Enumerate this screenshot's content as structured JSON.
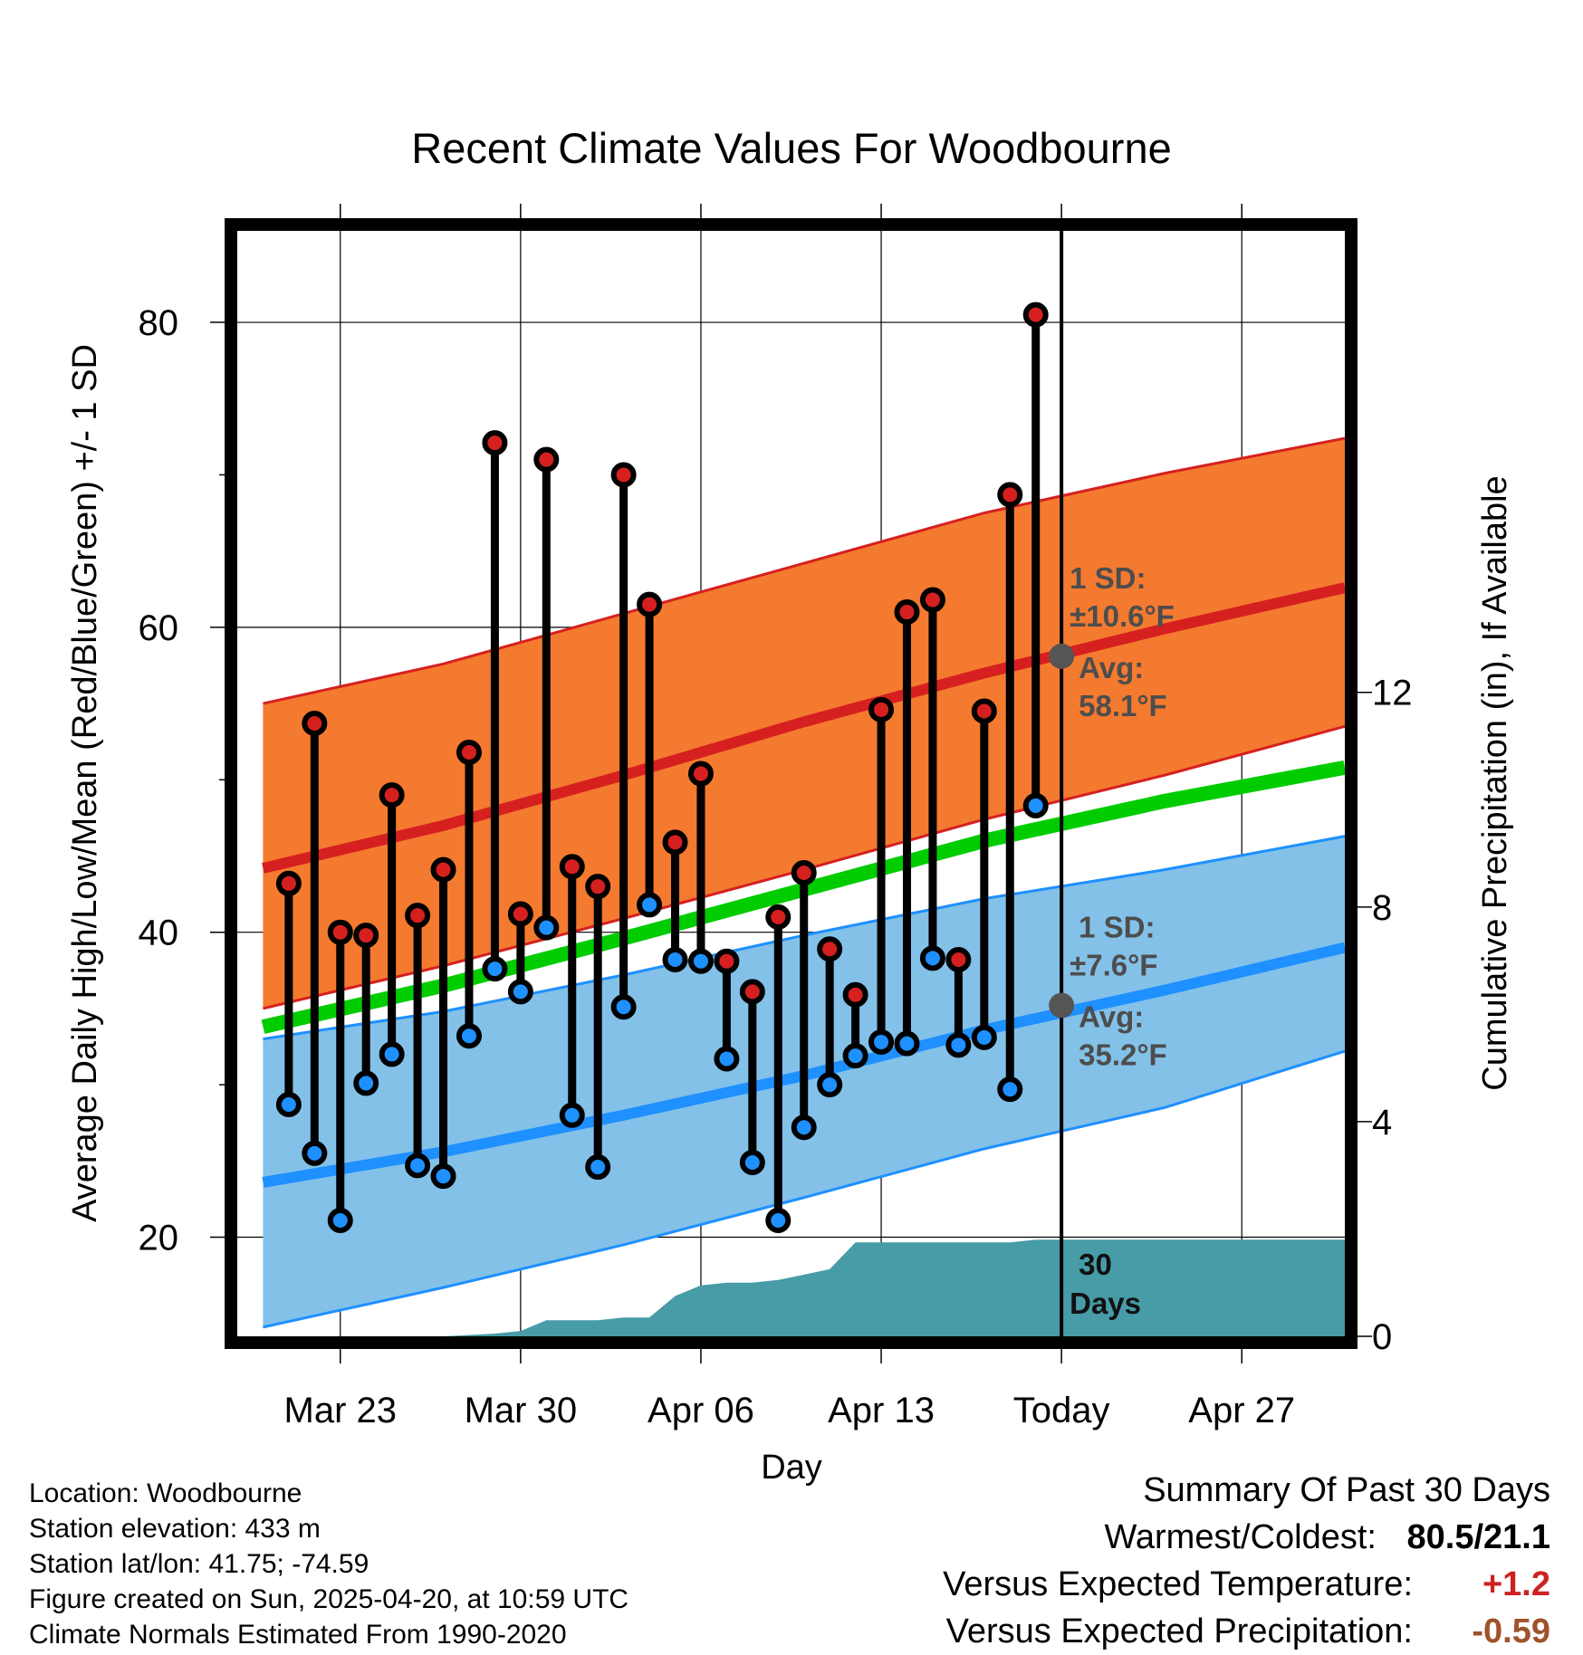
{
  "chart_data": {
    "type": "line",
    "title": "Recent Climate Values For Woodbourne",
    "xlabel": "Day",
    "ylabel": "Average Daily High/Low/Mean (Red/Blue/Green) +/- 1 SD",
    "y2label": "Cumulative Precipitation (in), If Available",
    "ylim": [
      13.5,
      86
    ],
    "y2lim": [
      0,
      20.6
    ],
    "yticks": [
      "20",
      "40",
      "60",
      "80"
    ],
    "y2ticks": [
      "0",
      "4",
      "8",
      "12"
    ],
    "xlim": [
      "2025-03-19",
      "2025-05-01"
    ],
    "xticks": [
      {
        "date": "2025-03-23",
        "label": "Mar 23"
      },
      {
        "date": "2025-03-30",
        "label": "Mar 30"
      },
      {
        "date": "2025-04-06",
        "label": "Apr 06"
      },
      {
        "date": "2025-04-13",
        "label": "Apr 13"
      },
      {
        "date": "2025-04-20",
        "label": "Today"
      },
      {
        "date": "2025-04-27",
        "label": "Apr 27"
      }
    ],
    "grid": true,
    "today": "2025-04-20",
    "normals": {
      "dates": [
        "2025-03-20",
        "2025-03-27",
        "2025-04-03",
        "2025-04-10",
        "2025-04-17",
        "2025-04-24",
        "2025-05-01"
      ],
      "high_mean": [
        44.2,
        47.0,
        50.3,
        53.8,
        57.0,
        59.9,
        62.6
      ],
      "high_upper": [
        55.0,
        57.6,
        60.9,
        64.2,
        67.5,
        70.1,
        72.4
      ],
      "high_lower": [
        35.0,
        37.8,
        40.9,
        44.1,
        47.4,
        50.3,
        53.5
      ],
      "mean": [
        33.8,
        36.5,
        39.6,
        42.8,
        46.0,
        48.6,
        50.8
      ],
      "low_mean": [
        23.6,
        25.6,
        28.0,
        30.6,
        33.6,
        36.2,
        39.0
      ],
      "low_upper": [
        33.0,
        34.8,
        37.2,
        39.8,
        42.2,
        44.1,
        46.3
      ],
      "low_lower": [
        14.1,
        16.7,
        19.5,
        22.6,
        25.8,
        28.5,
        32.2
      ]
    },
    "observed": {
      "dates": [
        "2025-03-21",
        "2025-03-22",
        "2025-03-23",
        "2025-03-24",
        "2025-03-25",
        "2025-03-26",
        "2025-03-27",
        "2025-03-28",
        "2025-03-29",
        "2025-03-30",
        "2025-03-31",
        "2025-04-01",
        "2025-04-02",
        "2025-04-03",
        "2025-04-04",
        "2025-04-05",
        "2025-04-06",
        "2025-04-07",
        "2025-04-08",
        "2025-04-09",
        "2025-04-10",
        "2025-04-11",
        "2025-04-12",
        "2025-04-13",
        "2025-04-14",
        "2025-04-15",
        "2025-04-16",
        "2025-04-17",
        "2025-04-18",
        "2025-04-19"
      ],
      "high": [
        43.2,
        53.7,
        40.0,
        39.8,
        49.0,
        41.1,
        44.1,
        51.8,
        72.1,
        41.2,
        71.0,
        44.3,
        43.0,
        70.0,
        61.5,
        45.9,
        50.4,
        38.1,
        36.1,
        41.0,
        43.9,
        38.9,
        35.9,
        54.6,
        61.0,
        61.8,
        38.2,
        54.5,
        68.7,
        80.5
      ],
      "low": [
        28.7,
        25.5,
        21.1,
        30.1,
        32.0,
        24.7,
        24.0,
        33.2,
        37.6,
        36.1,
        40.3,
        28.0,
        24.6,
        35.1,
        41.8,
        38.2,
        38.1,
        31.7,
        24.9,
        21.1,
        27.2,
        30.0,
        31.9,
        32.8,
        32.7,
        38.3,
        32.6,
        33.1,
        29.7,
        48.3
      ]
    },
    "precip": {
      "dates": [
        "2025-03-19",
        "2025-03-27",
        "2025-03-29",
        "2025-03-30",
        "2025-03-31",
        "2025-04-02",
        "2025-04-03",
        "2025-04-04",
        "2025-04-05",
        "2025-04-06",
        "2025-04-07",
        "2025-04-08",
        "2025-04-09",
        "2025-04-10",
        "2025-04-11",
        "2025-04-12",
        "2025-04-18",
        "2025-04-19",
        "2025-05-01"
      ],
      "cumulative": [
        0,
        0,
        0.05,
        0.1,
        0.3,
        0.3,
        0.35,
        0.35,
        0.75,
        0.95,
        1.0,
        1.0,
        1.05,
        1.15,
        1.25,
        1.75,
        1.75,
        1.8,
        1.8
      ]
    },
    "annotations": {
      "high_sd_1": "1 SD:",
      "high_sd_2": "±10.6°F",
      "high_avg_1": "Avg:",
      "high_avg_2": "58.1°F",
      "low_sd_1": "1 SD:",
      "low_sd_2": "±7.6°F",
      "low_avg_1": "Avg:",
      "low_avg_2": "35.2°F",
      "days_1": "30",
      "days_2": "Days"
    },
    "today_avg_high": 58.1,
    "today_avg_low": 35.2,
    "colors": {
      "high_band": "#f47a2f",
      "high_line": "#d62020",
      "mean_line": "#00cc00",
      "low_band": "#83c1e8",
      "low_line": "#1e90ff",
      "precip": "#479ca7",
      "high_dot": "#d62020",
      "low_dot": "#1e90ff",
      "avg_dot": "#555555"
    }
  },
  "info": {
    "location": "Location: Woodbourne",
    "elevation": "Station elevation: 433 m",
    "latlon": "Station lat/lon: 41.75; -74.59",
    "created": "Figure created on Sun, 2025-04-20, at 10:59 UTC",
    "normals": "Climate Normals Estimated From 1990-2020"
  },
  "summary": {
    "title": "Summary Of Past 30 Days",
    "warm_cold_label": "Warmest/Coldest:",
    "warm_cold_value": "80.5/21.1",
    "temp_label": "Versus Expected Temperature:",
    "temp_value": "+1.2",
    "temp_color": "#cc2222",
    "precip_label": "Versus Expected Precipitation:",
    "precip_value": "-0.59",
    "precip_color": "#a0522d"
  }
}
